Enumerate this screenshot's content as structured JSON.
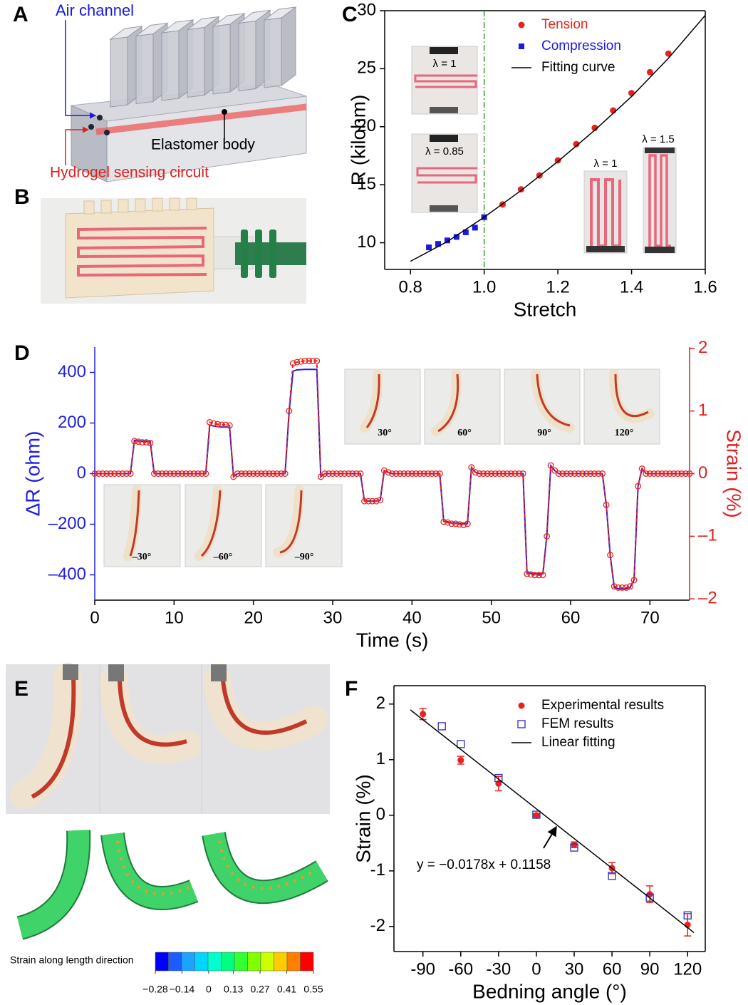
{
  "panels": {
    "labels": [
      "A",
      "B",
      "C",
      "D",
      "E",
      "F"
    ],
    "A": {
      "air_channel": "Air channel",
      "elastomer_body": "Elastomer body",
      "hydrogel_circuit": "Hydrogel sensing circuit"
    },
    "C_insets": [
      "λ = 1",
      "λ = 0.85",
      "λ = 1",
      "λ = 1.5"
    ],
    "D_insets": [
      "30°",
      "60°",
      "90°",
      "120°",
      "–30°",
      "–60°",
      "–90°"
    ],
    "E_colorbar": {
      "title": "Strain along length direction",
      "clim": [
        -0.28,
        0.55
      ],
      "ticks": [
        {
          "value": -0.28,
          "label": "−0.28"
        },
        {
          "value": -0.14,
          "label": "−0.14"
        },
        0,
        0.13,
        0.27,
        0.41,
        0.55
      ],
      "colormap": [
        "#0000ff",
        "#1a5cff",
        "#1aa3ff",
        "#00d5ff",
        "#00ffcc",
        "#00ff7f",
        "#33ff33",
        "#80ff00",
        "#ccff00",
        "#ffcc00",
        "#ff7f00",
        "#ff0000"
      ]
    }
  },
  "chart_data": [
    {
      "type": "scatter",
      "x_label": "Stretch",
      "y_label": "R (kilohm)",
      "xlim": [
        0.73,
        1.6
      ],
      "xticks": [
        0.8,
        {
          "value": 1,
          "label": "1.0"
        },
        1.2,
        1.4,
        1.6
      ],
      "ylim": [
        7.7,
        30
      ],
      "yticks": [
        10,
        15,
        20,
        25,
        30
      ],
      "reference_line": {
        "x": 1,
        "color": "#3a9a3a"
      },
      "legend": "top-right",
      "legend_text": "series",
      "series": [
        {
          "name": "Tension",
          "color": "#e8231e",
          "marker": "circle",
          "x": [
            1.05,
            1.1,
            1.15,
            1.2,
            1.25,
            1.3,
            1.35,
            1.4,
            1.45,
            1.5
          ],
          "values": [
            13.3,
            14.6,
            15.8,
            17.1,
            18.5,
            19.9,
            21.4,
            22.9,
            24.7,
            26.3
          ]
        },
        {
          "name": "Compression",
          "color": "#1a1adf",
          "marker": "square",
          "x": [
            0.85,
            0.875,
            0.9,
            0.925,
            0.95,
            0.975,
            1.0
          ],
          "values": [
            9.6,
            9.9,
            10.2,
            10.5,
            10.9,
            11.3,
            12.2
          ]
        },
        {
          "name": "Fitting curve",
          "color": "#000000",
          "marker": "line",
          "x": [
            0.8,
            0.9,
            1.0,
            1.1,
            1.2,
            1.3,
            1.4,
            1.5,
            1.6
          ],
          "values": [
            8.4,
            10.1,
            12.2,
            14.5,
            17.0,
            19.7,
            22.6,
            25.9,
            29.6
          ]
        }
      ]
    },
    {
      "type": "line",
      "x_label": "Time (s)",
      "y_label": "ΔR (ohm)",
      "y2_label": "Strain (%)",
      "y_color": "#1f1fe0",
      "y2_color": "#e02020",
      "xlim": [
        0,
        75
      ],
      "xticks": [
        0,
        10,
        20,
        30,
        40,
        50,
        60,
        70
      ],
      "ylim": [
        -500,
        500
      ],
      "yticks": [
        {
          "value": -400,
          "label": "–400"
        },
        {
          "value": -200,
          "label": "–200"
        },
        0,
        200,
        400
      ],
      "y2lim": [
        -2.02,
        2.02
      ],
      "y2ticks": [
        {
          "value": -2,
          "label": "–2"
        },
        {
          "value": -1,
          "label": "–1"
        },
        0,
        1,
        2
      ],
      "x": [
        0,
        0.5,
        1,
        1.5,
        2,
        2.5,
        3,
        3.5,
        4,
        4.5,
        5,
        5.5,
        6,
        6.5,
        7,
        7.5,
        8,
        8.5,
        9,
        9.5,
        10,
        10.5,
        11,
        11.5,
        12,
        12.5,
        13,
        13.5,
        14,
        14.5,
        15,
        15.5,
        16,
        16.5,
        17,
        17.5,
        18,
        18.5,
        19,
        19.5,
        20,
        20.5,
        21,
        21.5,
        22,
        22.5,
        23,
        23.5,
        24,
        24.5,
        25,
        25.5,
        26,
        26.5,
        27,
        27.5,
        28,
        28.5,
        29,
        29.5,
        30,
        30.5,
        31,
        31.5,
        32,
        32.5,
        33,
        33.5,
        34,
        34.5,
        35,
        35.5,
        36,
        36.5,
        37,
        37.5,
        38,
        38.5,
        39,
        39.5,
        40,
        40.5,
        41,
        41.5,
        42,
        42.5,
        43,
        43.5,
        44,
        44.5,
        45,
        45.5,
        46,
        46.5,
        47,
        47.5,
        48,
        48.5,
        49,
        49.5,
        50,
        50.5,
        51,
        51.5,
        52,
        52.5,
        53,
        53.5,
        54,
        54.5,
        55,
        55.5,
        56,
        56.5,
        57,
        57.5,
        58,
        58.5,
        59,
        59.5,
        60,
        60.5,
        61,
        61.5,
        62,
        62.5,
        63,
        63.5,
        64,
        64.5,
        65,
        65.5,
        66,
        66.5,
        67,
        67.5,
        68,
        68.5,
        69,
        69.5,
        70,
        70.5,
        71,
        71.5,
        72,
        72.5,
        73,
        73.5,
        74,
        74.5,
        75
      ],
      "series": [
        {
          "color": "#1f1fe0",
          "values": [
            0,
            0,
            0,
            0,
            0,
            0,
            0,
            0,
            0,
            0,
            132,
            130,
            128,
            128,
            126,
            0,
            0,
            0,
            0,
            0,
            0,
            0,
            0,
            0,
            0,
            0,
            0,
            0,
            0,
            192,
            188,
            186,
            184,
            184,
            182,
            -12,
            0,
            0,
            0,
            0,
            0,
            0,
            0,
            0,
            0,
            0,
            0,
            0,
            0,
            240,
            405,
            410,
            411,
            412,
            412,
            412,
            412,
            -12,
            0,
            0,
            0,
            0,
            0,
            0,
            0,
            0,
            0,
            0,
            -108,
            -108,
            -108,
            -108,
            -104,
            12,
            5,
            0,
            0,
            0,
            0,
            0,
            0,
            0,
            0,
            0,
            0,
            0,
            0,
            0,
            -188,
            -190,
            -195,
            -195,
            -197,
            -199,
            -195,
            24,
            5,
            0,
            0,
            0,
            0,
            0,
            0,
            0,
            0,
            0,
            0,
            0,
            0,
            -392,
            -394,
            -396,
            -396,
            -396,
            -245,
            31,
            12,
            0,
            0,
            0,
            0,
            0,
            0,
            0,
            0,
            0,
            0,
            0,
            0,
            -125,
            -325,
            -450,
            -455,
            -455,
            -455,
            -450,
            -420,
            -50,
            20,
            0,
            0,
            0,
            0,
            0,
            0,
            0,
            0,
            0,
            0,
            0,
            0
          ]
        },
        {
          "color": "#e8231e",
          "axis": "y2",
          "marker": "open-circle",
          "line_style": "dashed",
          "values": [
            0,
            0,
            0,
            0,
            0,
            0,
            0,
            0,
            0,
            0,
            0.52,
            0.51,
            0.5,
            0.5,
            0.49,
            0,
            0,
            0,
            0,
            0,
            0,
            0,
            0,
            0,
            0,
            0,
            0,
            0,
            0,
            0.82,
            0.8,
            0.79,
            0.78,
            0.78,
            0.77,
            -0.05,
            0,
            0,
            0,
            0,
            0,
            0,
            0,
            0,
            0,
            0,
            0,
            0,
            0,
            1.0,
            1.76,
            1.78,
            1.79,
            1.8,
            1.8,
            1.8,
            1.8,
            -0.05,
            0,
            0,
            0,
            0,
            0,
            0,
            0,
            0,
            0,
            0,
            -0.44,
            -0.44,
            -0.44,
            -0.44,
            -0.42,
            0.05,
            0.02,
            0,
            0,
            0,
            0,
            0,
            0,
            0,
            0,
            0,
            0,
            0,
            0,
            0,
            -0.77,
            -0.78,
            -0.8,
            -0.8,
            -0.81,
            -0.82,
            -0.8,
            0.1,
            0.02,
            0,
            0,
            0,
            0,
            0,
            0,
            0,
            0,
            0,
            0,
            0,
            0,
            -1.6,
            -1.61,
            -1.62,
            -1.62,
            -1.62,
            -1.0,
            0.13,
            0.05,
            0,
            0,
            0,
            0,
            0,
            0,
            0,
            0,
            0,
            0,
            0,
            0,
            -0.5,
            -1.3,
            -1.8,
            -1.82,
            -1.82,
            -1.82,
            -1.8,
            -1.7,
            -0.2,
            0.08,
            0,
            0,
            0,
            0,
            0,
            0,
            0,
            0,
            0,
            0,
            0,
            0
          ]
        }
      ]
    },
    {
      "type": "scatter",
      "x_label": "Bedning angle (°)",
      "y_label": "Strain (%)",
      "xlim": [
        -113,
        134
      ],
      "xticks": [
        -90,
        -60,
        -30,
        0,
        30,
        60,
        90,
        120
      ],
      "ylim": [
        -2.45,
        2.33
      ],
      "yticks": [
        -2,
        -1,
        0,
        1,
        2
      ],
      "legend": "top-right",
      "annotation": "y = −0.0178x + 0.1158",
      "series": [
        {
          "name": "Experimental results",
          "color": "#e8231e",
          "marker": "circle",
          "x": [
            -90,
            -60,
            -30,
            0,
            30,
            60,
            90,
            120
          ],
          "values": [
            1.82,
            0.99,
            0.57,
            0,
            -0.53,
            -0.95,
            -1.42,
            -1.97
          ],
          "errors": [
            0.1,
            0.07,
            0.13,
            0.03,
            0.05,
            0.1,
            0.15,
            0.2
          ]
        },
        {
          "name": "FEM results",
          "color": "#2b2bbd",
          "marker": "open-square",
          "x": [
            -75,
            -60,
            -30,
            0,
            30,
            60,
            90,
            120
          ],
          "values": [
            1.6,
            1.28,
            0.67,
            0.01,
            -0.58,
            -1.09,
            -1.48,
            -1.8
          ]
        },
        {
          "name": "Linear fitting",
          "color": "#000000",
          "marker": "line",
          "x": [
            -100,
            125
          ],
          "values": [
            1.8958,
            -2.1092
          ]
        }
      ]
    }
  ]
}
